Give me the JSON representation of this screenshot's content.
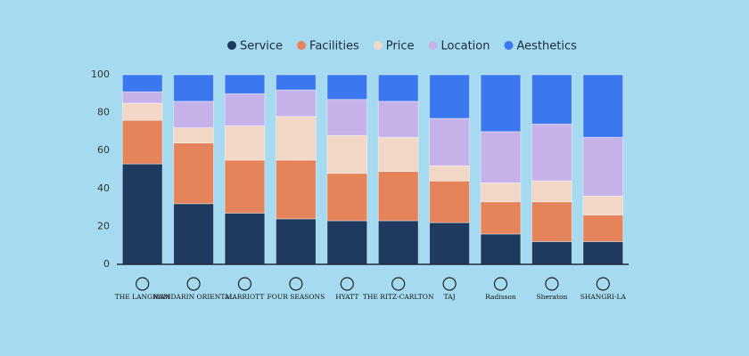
{
  "chart_data": {
    "type": "stacked-bar",
    "categories": [
      "THE LANGHAM",
      "MANDARIN ORIENTAL",
      "MARRIOTT",
      "FOUR SEASONS",
      "HYATT",
      "THE RITZ-CARLTON",
      "TAJ",
      "Radisson",
      "Sheraton",
      "SHANGRI-LA"
    ],
    "series": [
      {
        "name": "Service",
        "color": "#1f3a5f",
        "values": [
          53,
          32,
          27,
          24,
          23,
          23,
          22,
          16,
          12,
          12
        ]
      },
      {
        "name": "Facilities",
        "color": "#e5845a",
        "values": [
          23,
          32,
          28,
          31,
          25,
          26,
          22,
          17,
          21,
          14
        ]
      },
      {
        "name": "Price",
        "color": "#f3d7c6",
        "values": [
          9,
          8,
          18,
          23,
          20,
          18,
          8,
          10,
          11,
          10
        ]
      },
      {
        "name": "Location",
        "color": "#c6b1e8",
        "values": [
          6,
          14,
          17,
          14,
          19,
          19,
          25,
          27,
          30,
          31
        ]
      },
      {
        "name": "Aesthetics",
        "color": "#3b78f0",
        "values": [
          9,
          14,
          10,
          8,
          13,
          14,
          23,
          30,
          26,
          33
        ]
      }
    ],
    "ylim": [
      0,
      100
    ],
    "yticks": [
      0,
      20,
      40,
      60,
      80,
      100
    ],
    "legend": "top",
    "grid": false
  }
}
